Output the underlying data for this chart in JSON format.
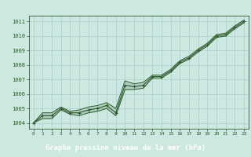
{
  "x": [
    0,
    1,
    2,
    3,
    4,
    5,
    6,
    7,
    8,
    9,
    10,
    11,
    12,
    13,
    14,
    15,
    16,
    17,
    18,
    19,
    20,
    21,
    22,
    23
  ],
  "y_main": [
    1004.0,
    1004.5,
    1004.5,
    1005.0,
    1004.7,
    1004.7,
    1004.9,
    1005.0,
    1005.2,
    1004.7,
    1006.6,
    1006.5,
    1006.6,
    1007.2,
    1007.2,
    1007.6,
    1008.2,
    1008.5,
    1009.0,
    1009.4,
    1010.0,
    1010.1,
    1010.6,
    1011.0
  ],
  "y_min": [
    1004.0,
    1004.3,
    1004.3,
    1004.9,
    1004.6,
    1004.5,
    1004.7,
    1004.8,
    1005.0,
    1004.5,
    1006.3,
    1006.3,
    1006.4,
    1007.1,
    1007.1,
    1007.5,
    1008.1,
    1008.4,
    1008.9,
    1009.3,
    1009.9,
    1010.0,
    1010.5,
    1010.9
  ],
  "y_max": [
    1004.0,
    1004.7,
    1004.7,
    1005.1,
    1004.8,
    1004.9,
    1005.1,
    1005.2,
    1005.4,
    1005.0,
    1006.9,
    1006.7,
    1006.8,
    1007.3,
    1007.3,
    1007.7,
    1008.3,
    1008.6,
    1009.1,
    1009.5,
    1010.1,
    1010.2,
    1010.7,
    1011.1
  ],
  "bg_color": "#cce8e0",
  "plot_bg_color": "#cce8e0",
  "grid_color": "#aacfc8",
  "line_color": "#2d5a2d",
  "label_bg_color": "#2d5a2d",
  "label_fg_color": "#ffffff",
  "tick_color": "#2d5a2d",
  "ylim": [
    1003.6,
    1011.4
  ],
  "xlim": [
    -0.5,
    23.5
  ],
  "yticks": [
    1004,
    1005,
    1006,
    1007,
    1008,
    1009,
    1010,
    1011
  ],
  "xticks": [
    0,
    1,
    2,
    3,
    4,
    5,
    6,
    7,
    8,
    9,
    10,
    11,
    12,
    13,
    14,
    15,
    16,
    17,
    18,
    19,
    20,
    21,
    22,
    23
  ],
  "xlabel": "Graphe pression niveau de la mer (hPa)"
}
